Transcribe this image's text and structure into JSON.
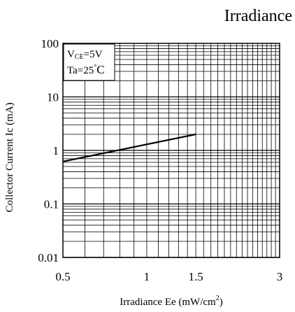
{
  "chart_data": {
    "type": "line",
    "title": "Irradiance",
    "xlabel": "Irradiance Ee (mW/cm",
    "xlabel_sup": "2",
    "xlabel_end": ")",
    "ylabel": "Collector Current Ic (mA)",
    "x_scale": "log",
    "y_scale": "log",
    "xlim": [
      0.5,
      3
    ],
    "ylim": [
      0.01,
      100
    ],
    "x_ticks": [
      "0.5",
      "1",
      "1.5",
      "3"
    ],
    "y_ticks": [
      "100",
      "10",
      "1",
      "0.1",
      "0.01"
    ],
    "grid": true,
    "annotation": {
      "line1_prefix": "V",
      "line1_sub": "CE",
      "line1_suffix": "=5V",
      "line2_prefix": "Ta=25",
      "line2_deg": "°",
      "line2_suffix": "C"
    },
    "series": [
      {
        "points": [
          {
            "x": 0.5,
            "y": 0.62
          },
          {
            "x": 1.5,
            "y": 2.0
          }
        ]
      }
    ]
  }
}
